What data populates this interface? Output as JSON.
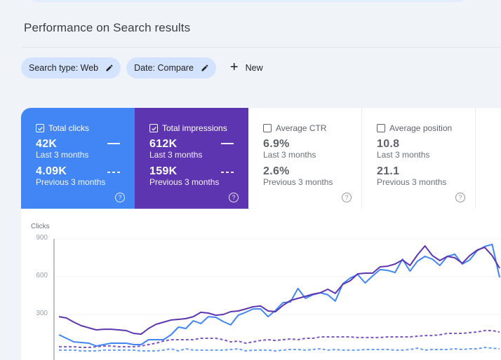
{
  "header": {
    "title": "Performance on Search results"
  },
  "filters": {
    "chips": [
      {
        "label": "Search type: Web",
        "icon": "pencil-icon"
      },
      {
        "label": "Date: Compare",
        "icon": "pencil-icon"
      }
    ],
    "new_button": {
      "icon": "plus-icon",
      "label": "New"
    }
  },
  "metrics": [
    {
      "label": "Total clicks",
      "checked": true,
      "value": "42K",
      "period": "Last 3 months",
      "compare_value": "4.09K",
      "compare_period": "Previous 3 months",
      "color": "#4285f4"
    },
    {
      "label": "Total impressions",
      "checked": true,
      "value": "612K",
      "period": "Last 3 months",
      "compare_value": "159K",
      "compare_period": "Previous 3 months",
      "color": "#5e35b1"
    },
    {
      "label": "Average CTR",
      "checked": false,
      "value": "6.9%",
      "period": "Last 3 months",
      "compare_value": "2.6%",
      "compare_period": "Previous 3 months",
      "color": "#ffffff"
    },
    {
      "label": "Average position",
      "checked": false,
      "value": "10.8",
      "period": "Last 3 months",
      "compare_value": "21.1",
      "compare_period": "Previous 3 months",
      "color": "#ffffff"
    }
  ],
  "help_glyph": "?",
  "chart_data": {
    "type": "line",
    "title": "",
    "ylabel": "Clicks",
    "xlabel": "",
    "ylim": [
      0,
      900
    ],
    "yticks": [
      "900",
      "600",
      "300"
    ],
    "grid": true,
    "x": [
      1,
      2,
      3,
      4,
      5,
      6,
      7,
      8,
      9,
      10,
      11,
      12,
      13,
      14,
      15,
      16,
      17,
      18,
      19,
      20,
      21,
      22,
      23,
      24,
      25,
      26,
      27,
      28,
      29,
      30,
      31,
      32,
      33,
      34,
      35,
      36,
      37,
      38,
      39,
      40,
      41,
      42,
      43,
      44,
      45,
      46,
      47,
      48,
      49,
      50,
      51,
      52,
      53,
      54,
      55,
      56,
      57,
      58,
      59,
      60
    ],
    "series": [
      {
        "name": "Total impressions (Last 3 months)",
        "style": "solid",
        "color": "#5e35b1",
        "values": [
          283,
          272,
          239,
          211,
          194,
          178,
          183,
          183,
          178,
          172,
          150,
          144,
          189,
          222,
          239,
          256,
          261,
          267,
          283,
          317,
          311,
          294,
          300,
          322,
          328,
          344,
          361,
          367,
          328,
          322,
          372,
          411,
          428,
          444,
          461,
          472,
          500,
          467,
          539,
          567,
          622,
          628,
          628,
          678,
          683,
          700,
          733,
          689,
          772,
          844,
          767,
          728,
          761,
          750,
          706,
          767,
          811,
          833,
          767,
          667
        ]
      },
      {
        "name": "Total clicks (Last 3 months)",
        "style": "solid",
        "color": "#4285f4",
        "values": [
          139,
          111,
          83,
          78,
          72,
          50,
          61,
          72,
          72,
          72,
          61,
          61,
          100,
          100,
          100,
          139,
          200,
          189,
          250,
          228,
          283,
          278,
          244,
          217,
          294,
          317,
          344,
          344,
          283,
          333,
          394,
          400,
          506,
          428,
          456,
          472,
          456,
          406,
          544,
          589,
          617,
          550,
          606,
          656,
          650,
          633,
          739,
          644,
          722,
          761,
          739,
          689,
          761,
          778,
          700,
          733,
          806,
          839,
          856,
          594
        ]
      },
      {
        "name": "Total impressions (Previous 3 months)",
        "style": "dashed",
        "color": "#7e57c2",
        "values": [
          44,
          44,
          44,
          39,
          39,
          44,
          50,
          50,
          44,
          44,
          44,
          50,
          61,
          72,
          89,
          100,
          100,
          100,
          100,
          111,
          111,
          111,
          100,
          83,
          89,
          72,
          83,
          94,
          100,
          94,
          100,
          106,
          100,
          111,
          111,
          122,
          122,
          122,
          122,
          122,
          117,
          117,
          117,
          117,
          122,
          122,
          122,
          122,
          128,
          133,
          133,
          139,
          150,
          150,
          150,
          156,
          161,
          172,
          172,
          161
        ]
      },
      {
        "name": "Total clicks (Previous 3 months)",
        "style": "dashed",
        "color": "#669df6",
        "values": [
          17,
          17,
          17,
          11,
          11,
          11,
          17,
          17,
          17,
          17,
          17,
          11,
          11,
          11,
          17,
          28,
          11,
          28,
          17,
          17,
          17,
          17,
          17,
          22,
          28,
          11,
          17,
          17,
          17,
          11,
          17,
          22,
          22,
          17,
          22,
          28,
          17,
          22,
          17,
          17,
          17,
          22,
          22,
          22,
          22,
          17,
          17,
          22,
          33,
          17,
          22,
          22,
          22,
          28,
          22,
          28,
          28,
          39,
          33,
          28
        ]
      }
    ]
  }
}
